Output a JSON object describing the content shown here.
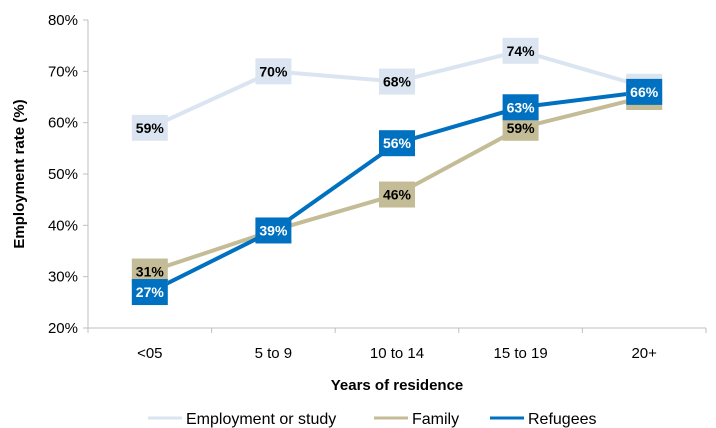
{
  "chart_data": {
    "type": "line",
    "xlabel": "Years of residence",
    "ylabel": "Employment rate (%)",
    "categories": [
      "<05",
      "5 to 9",
      "10 to 14",
      "15 to 19",
      "20+"
    ],
    "ylim": [
      20,
      80
    ],
    "yticks": [
      "20%",
      "30%",
      "40%",
      "50%",
      "60%",
      "70%",
      "80%"
    ],
    "grid": false,
    "legend_position": "bottom",
    "series": [
      {
        "name": "Employment or study",
        "values": [
          59,
          70,
          68,
          74,
          67
        ],
        "labels": [
          "59%",
          "70%",
          "68%",
          "74%",
          "67%"
        ],
        "color": "#dbe5f1",
        "label_fill": "#dbe5f1",
        "label_color": "#000000"
      },
      {
        "name": "Family",
        "values": [
          31,
          39,
          46,
          59,
          65
        ],
        "labels": [
          "31%",
          "",
          "46%",
          "59%",
          "65%"
        ],
        "color": "#c4bc96",
        "label_fill": "#c4bc96",
        "label_color": "#000000"
      },
      {
        "name": "Refugees",
        "values": [
          27,
          39,
          56,
          63,
          66
        ],
        "labels": [
          "27%",
          "39%",
          "56%",
          "63%",
          "66%"
        ],
        "color": "#0070c0",
        "label_fill": "#0070c0",
        "label_color": "#ffffff"
      }
    ]
  }
}
